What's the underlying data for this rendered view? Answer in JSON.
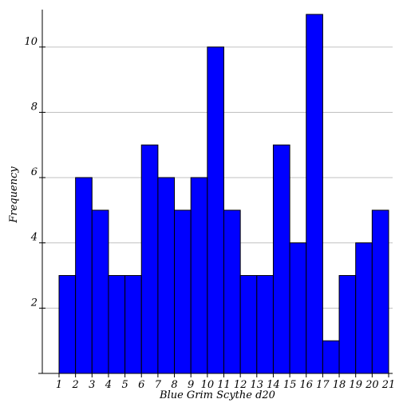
{
  "chart_data": {
    "type": "bar",
    "title": "",
    "xlabel": "Blue Grim Scythe d20",
    "ylabel": "Frequency",
    "x_ticks": [
      1,
      2,
      3,
      4,
      5,
      6,
      7,
      8,
      9,
      10,
      11,
      12,
      13,
      14,
      15,
      16,
      17,
      18,
      19,
      20,
      21
    ],
    "y_ticks": [
      2,
      4,
      6,
      8,
      10
    ],
    "categories": [
      "1",
      "2",
      "3",
      "4",
      "5",
      "6",
      "7",
      "8",
      "9",
      "10",
      "11",
      "12",
      "13",
      "14",
      "15",
      "16",
      "17",
      "18",
      "19",
      "20"
    ],
    "values": [
      3,
      6,
      5,
      3,
      3,
      7,
      6,
      5,
      6,
      10,
      5,
      3,
      3,
      7,
      4,
      11,
      1,
      3,
      4,
      5
    ],
    "xlim": [
      1,
      21
    ],
    "ylim": [
      0,
      11
    ],
    "grid": true,
    "bar_color": "#0000ff",
    "grid_color": "#c0c0c0"
  }
}
